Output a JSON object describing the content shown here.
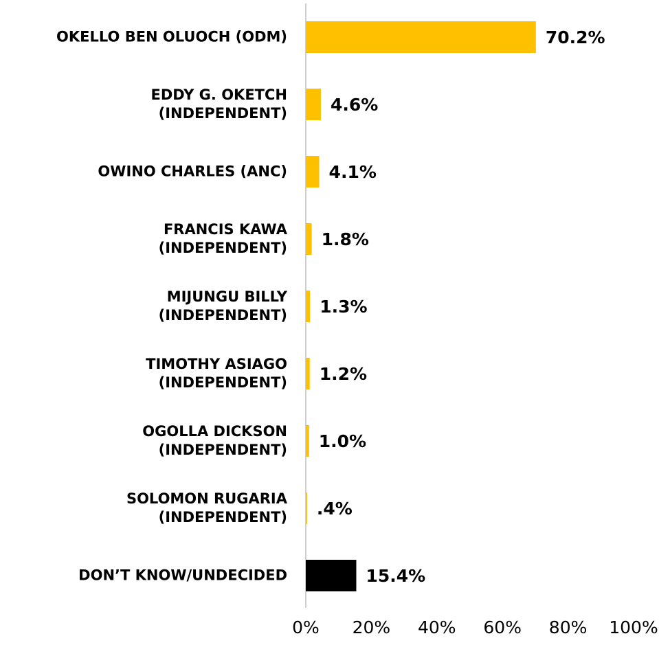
{
  "chart_data": {
    "type": "bar",
    "orientation": "horizontal",
    "categories": [
      "OKELLO BEN OLUOCH (ODM)",
      "EDDY G. OKETCH\n(INDEPENDENT)",
      "OWINO CHARLES (ANC)",
      "FRANCIS KAWA\n(INDEPENDENT)",
      "MIJUNGU BILLY\n(INDEPENDENT)",
      "TIMOTHY ASIAGO\n(INDEPENDENT)",
      "OGOLLA DICKSON\n(INDEPENDENT)",
      "SOLOMON RUGARIA\n(INDEPENDENT)",
      "DON’T KNOW/UNDECIDED"
    ],
    "values": [
      70.2,
      4.6,
      4.1,
      1.8,
      1.3,
      1.2,
      1.0,
      0.4,
      15.4
    ],
    "value_labels": [
      "70.2%",
      "4.6%",
      "4.1%",
      "1.8%",
      "1.3%",
      "1.2%",
      "1.0%",
      ".4%",
      "15.4%"
    ],
    "colors": [
      "#FFC000",
      "#FFC000",
      "#FFC000",
      "#FFC000",
      "#FFC000",
      "#FFC000",
      "#FFC000",
      "#FFC000",
      "#000000"
    ],
    "xlim": [
      0,
      100
    ],
    "xticks": [
      {
        "value": 0,
        "label": "0%"
      },
      {
        "value": 20,
        "label": "20%"
      },
      {
        "value": 40,
        "label": "40%"
      },
      {
        "value": 60,
        "label": "60%"
      },
      {
        "value": 80,
        "label": "80%"
      },
      {
        "value": 100,
        "label": "100%"
      }
    ],
    "grid": false
  }
}
